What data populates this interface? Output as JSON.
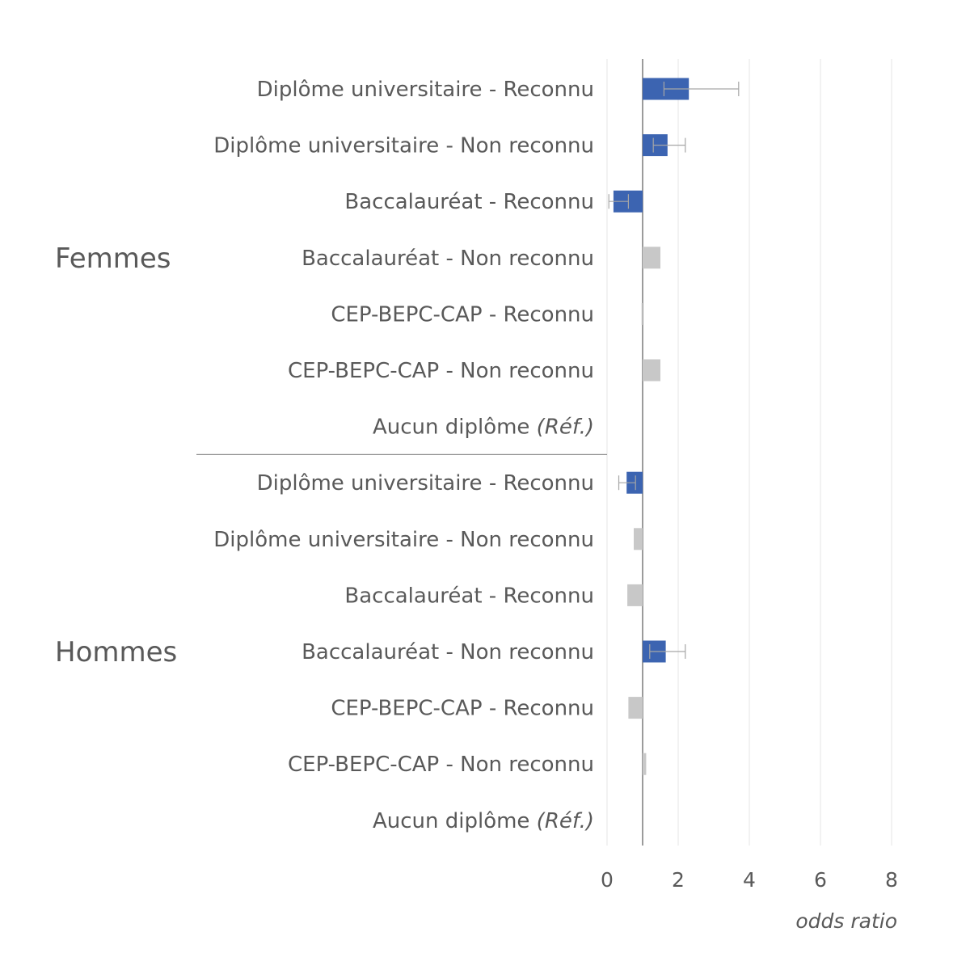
{
  "colors": {
    "significant": "#3c64b1",
    "non_significant": "#c8c8c8",
    "error_bar": "#a6a6a6",
    "text": "#595959",
    "grid": "#e6e6e6",
    "axis": "#595959"
  },
  "chart_data": {
    "type": "bar",
    "orientation": "horizontal",
    "baseline": 1,
    "xlabel": "odds ratio",
    "xlim": [
      0,
      8
    ],
    "xticks": [
      "0",
      "2",
      "4",
      "6",
      "8"
    ],
    "grid": true,
    "groups": [
      {
        "name": "Femmes",
        "items": [
          {
            "label": "Diplôme universitaire - Reconnu",
            "value": 2.3,
            "ci": [
              1.6,
              3.7
            ],
            "significant": true
          },
          {
            "label": "Diplôme universitaire - Non reconnu",
            "value": 1.7,
            "ci": [
              1.3,
              2.2
            ],
            "significant": true
          },
          {
            "label": "Baccalauréat - Reconnu",
            "value": 0.18,
            "ci": [
              0.05,
              0.6
            ],
            "significant": true
          },
          {
            "label": "Baccalauréat - Non reconnu",
            "value": 1.5,
            "ci": null,
            "significant": false
          },
          {
            "label": "CEP-BEPC-CAP - Reconnu",
            "value": 0.97,
            "ci": null,
            "significant": false
          },
          {
            "label": "CEP-BEPC-CAP - Non reconnu",
            "value": 1.5,
            "ci": null,
            "significant": false
          },
          {
            "label": "Aucun diplôme",
            "label_suffix": "(Réf.)",
            "value": null,
            "ci": null,
            "significant": false
          }
        ]
      },
      {
        "name": "Hommes",
        "items": [
          {
            "label": "Diplôme universitaire - Reconnu",
            "value": 0.55,
            "ci": [
              0.33,
              0.8
            ],
            "significant": true
          },
          {
            "label": "Diplôme universitaire - Non reconnu",
            "value": 0.75,
            "ci": null,
            "significant": false
          },
          {
            "label": "Baccalauréat - Reconnu",
            "value": 0.57,
            "ci": null,
            "significant": false
          },
          {
            "label": "Baccalauréat - Non reconnu",
            "value": 1.65,
            "ci": [
              1.2,
              2.2
            ],
            "significant": true
          },
          {
            "label": "CEP-BEPC-CAP - Reconnu",
            "value": 0.6,
            "ci": null,
            "significant": false
          },
          {
            "label": "CEP-BEPC-CAP - Non reconnu",
            "value": 1.1,
            "ci": null,
            "significant": false
          },
          {
            "label": "Aucun diplôme",
            "label_suffix": "(Réf.)",
            "value": null,
            "ci": null,
            "significant": false
          }
        ]
      }
    ]
  }
}
